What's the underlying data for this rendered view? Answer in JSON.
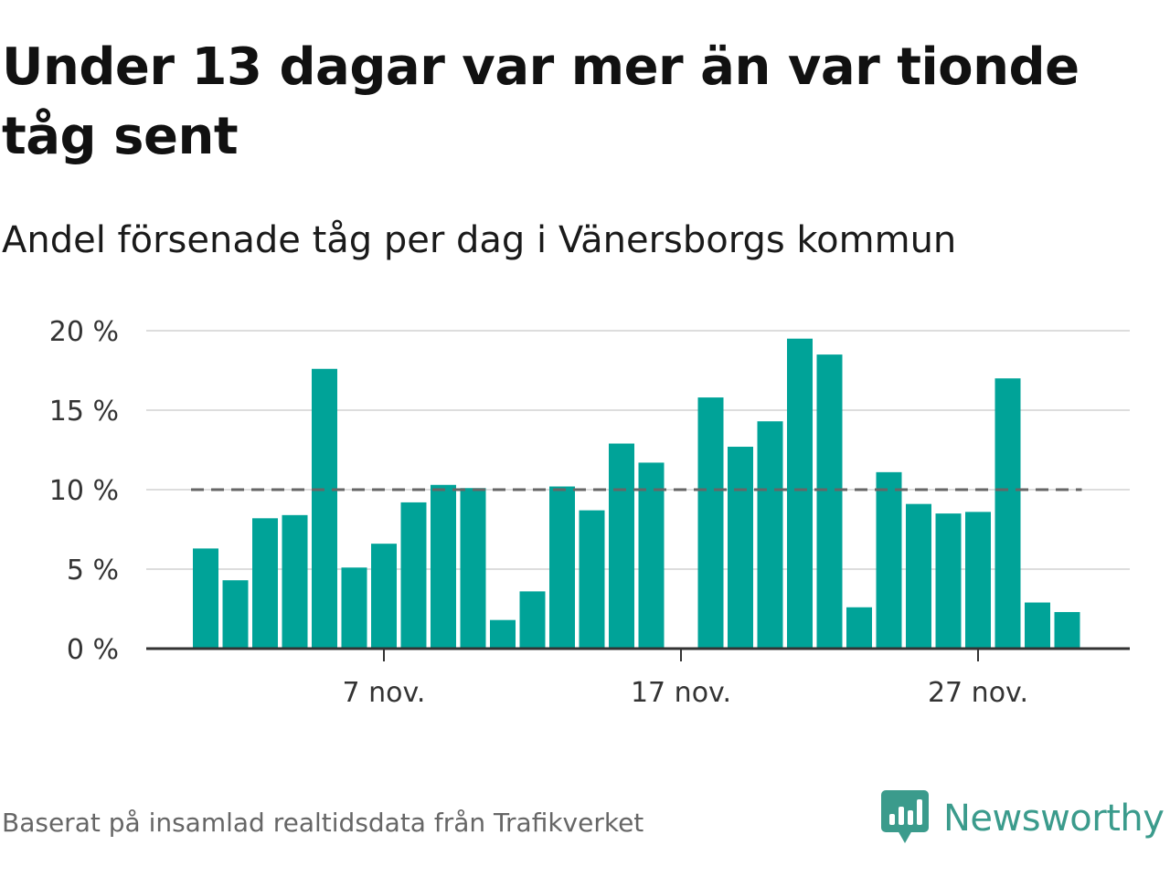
{
  "title": "Under 13 dagar var mer än var tionde tåg sent",
  "subtitle": "Andel försenade tåg per dag i Vänersborgs kommun",
  "source": "Baserat på insamlad realtidsdata från Trafikverket",
  "brand": {
    "name": "Newsworthy",
    "logo_icon": "newsworthy-logo-icon"
  },
  "colors": {
    "bar": "#00a398",
    "reference_line": "#666666",
    "grid": "#dddddd",
    "axis": "#333333",
    "brand": "#3b9b8c"
  },
  "chart_data": {
    "type": "bar",
    "x_unit": "day of November",
    "x": [
      1,
      2,
      3,
      4,
      5,
      6,
      7,
      8,
      9,
      10,
      11,
      12,
      13,
      14,
      15,
      16,
      17,
      18,
      19,
      20,
      21,
      22,
      23,
      24,
      25,
      26,
      27,
      28,
      29,
      30
    ],
    "values": [
      6.3,
      4.3,
      8.2,
      8.4,
      17.6,
      5.1,
      6.6,
      9.2,
      10.3,
      10.1,
      1.8,
      3.6,
      10.2,
      8.7,
      12.9,
      11.7,
      null,
      15.8,
      12.7,
      14.3,
      19.5,
      18.5,
      2.6,
      11.1,
      9.1,
      8.5,
      8.6,
      17.0,
      2.9,
      2.3
    ],
    "reference_line": 10,
    "ylim": [
      0,
      20
    ],
    "y_ticks": [
      {
        "value": 0,
        "label": "0 %"
      },
      {
        "value": 5,
        "label": "5 %"
      },
      {
        "value": 10,
        "label": "10 %"
      },
      {
        "value": 15,
        "label": "15 %"
      },
      {
        "value": 20,
        "label": "20 %"
      }
    ],
    "x_ticks": [
      {
        "x": 7,
        "label": "7 nov."
      },
      {
        "x": 17,
        "label": "17 nov."
      },
      {
        "x": 27,
        "label": "27 nov."
      }
    ],
    "grid": true,
    "legend": "none"
  }
}
